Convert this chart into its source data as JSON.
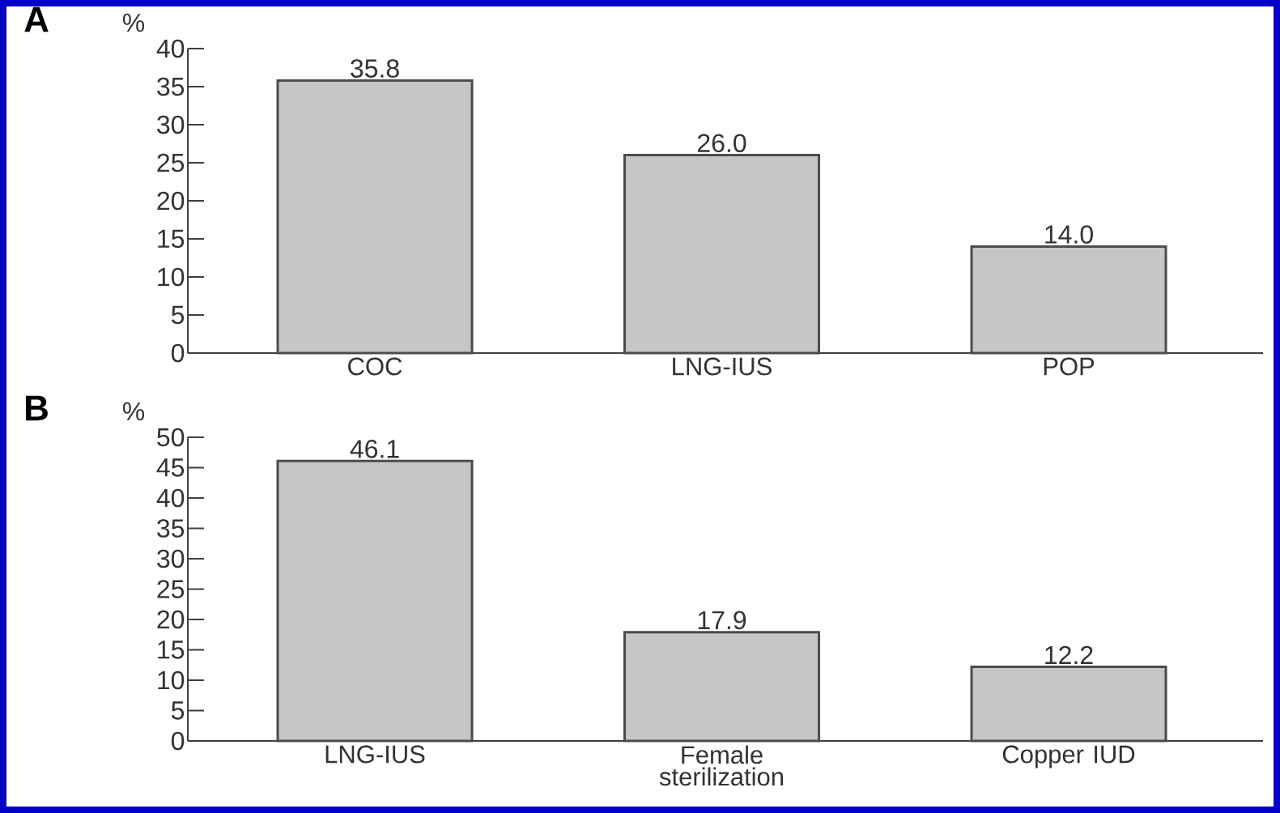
{
  "chart_data": [
    {
      "type": "bar",
      "title": "A",
      "ylabel": "%",
      "categories": [
        "COC",
        "LNG-IUS",
        "POP"
      ],
      "values": [
        35.8,
        26.0,
        14.0
      ],
      "value_labels": [
        "35.8",
        "26.0",
        "14.0"
      ],
      "color": "#c6c6c6",
      "ylim": [
        0,
        40
      ],
      "yticks": [
        0,
        5,
        10,
        15,
        20,
        25,
        30,
        35,
        40
      ],
      "grid": false
    },
    {
      "type": "bar",
      "title": "B",
      "ylabel": "%",
      "categories": [
        "LNG-IUS",
        "Female sterilization",
        "Copper IUD"
      ],
      "values": [
        46.1,
        17.9,
        12.2
      ],
      "value_labels": [
        "46.1",
        "17.9",
        "12.2"
      ],
      "color": "#c6c6c6",
      "ylim": [
        0,
        50
      ],
      "yticks": [
        0,
        5,
        10,
        15,
        20,
        25,
        30,
        35,
        40,
        45,
        50
      ],
      "grid": false
    }
  ]
}
